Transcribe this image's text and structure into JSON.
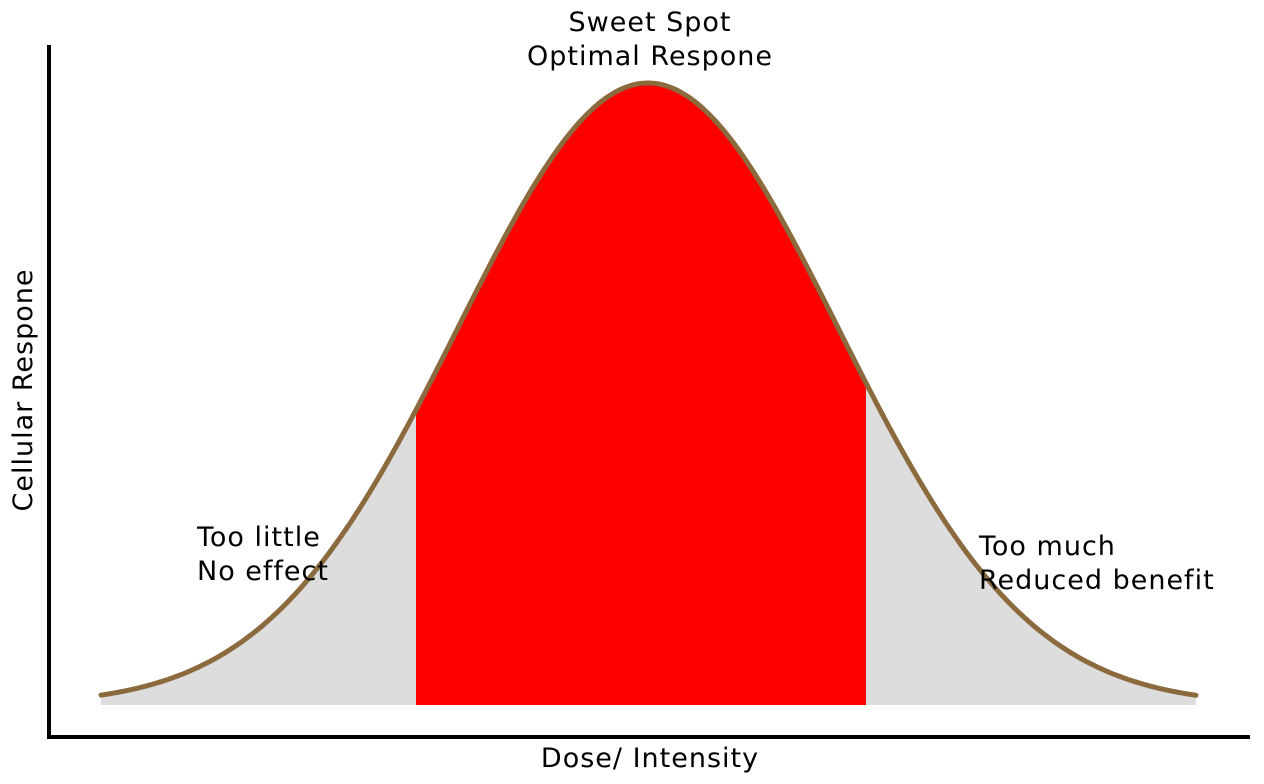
{
  "diagram": {
    "peak_label": {
      "line1": "Sweet Spot",
      "line2": "Optimal Respone"
    },
    "left_label": {
      "line1": "Too little",
      "line2": "No effect"
    },
    "right_label": {
      "line1": "Too much",
      "line2": "Reduced benefit"
    },
    "x_axis_label": "Dose/ Intensity",
    "y_axis_label": "Cellular Respone",
    "colors": {
      "sweet_spot_fill": "#ff0000",
      "tail_fill": "#dddddd",
      "curve_stroke": "#8b6a3e",
      "axis": "#000000"
    }
  }
}
